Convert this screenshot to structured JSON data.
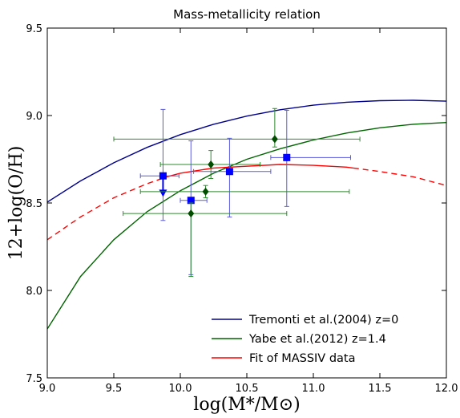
{
  "chart_data": {
    "type": "scatter",
    "title": "Mass-metallicity relation",
    "xlabel": "log(M*/M⊙)",
    "ylabel": "12+log(O/H)",
    "xlim": [
      9.0,
      12.0
    ],
    "ylim": [
      7.5,
      9.5
    ],
    "xticks": [
      "9.0",
      "9.5",
      "10.0",
      "10.5",
      "11.0",
      "11.5",
      "12.0"
    ],
    "yticks": [
      "7.5",
      "8.0",
      "8.5",
      "9.0",
      "9.5"
    ],
    "grid": false,
    "legend_position": "lower-right",
    "series": [
      {
        "name": "Tremonti et al.(2004) z=0",
        "kind": "line",
        "color": "#00008b",
        "x": [
          9.0,
          9.25,
          9.5,
          9.75,
          10.0,
          10.25,
          10.5,
          10.75,
          11.0,
          11.25,
          11.5,
          11.75,
          12.0
        ],
        "y": [
          8.505,
          8.626,
          8.73,
          8.818,
          8.891,
          8.95,
          8.997,
          9.033,
          9.059,
          9.076,
          9.085,
          9.087,
          9.082
        ]
      },
      {
        "name": "Yabe et al.(2012) z=1.4",
        "kind": "line",
        "color": "#006400",
        "x": [
          9.0,
          9.25,
          9.5,
          9.75,
          10.0,
          10.25,
          10.5,
          10.75,
          11.0,
          11.25,
          11.5,
          11.75,
          12.0
        ],
        "y": [
          7.78,
          8.08,
          8.29,
          8.45,
          8.57,
          8.67,
          8.75,
          8.81,
          8.86,
          8.9,
          8.93,
          8.95,
          8.96
        ]
      },
      {
        "name": "Fit of MASSIV data",
        "kind": "line",
        "color": "#ff0000",
        "solid_range": [
          9.9,
          11.3
        ],
        "x": [
          9.0,
          9.25,
          9.5,
          9.75,
          9.9,
          10.0,
          10.25,
          10.5,
          10.75,
          11.0,
          11.25,
          11.3,
          11.5,
          11.75,
          12.0
        ],
        "y": [
          8.29,
          8.42,
          8.53,
          8.61,
          8.65,
          8.67,
          8.7,
          8.71,
          8.72,
          8.715,
          8.705,
          8.7,
          8.68,
          8.65,
          8.6
        ]
      },
      {
        "name": "",
        "kind": "points",
        "marker": "square",
        "color": "#0000ff",
        "errcolor": "#5a5adc",
        "points": [
          {
            "x": 9.87,
            "y": 8.655,
            "xerr": [
              9.7,
              9.99
            ],
            "yerr": [
              8.4,
              9.035
            ],
            "upper_limit": true
          },
          {
            "x": 10.08,
            "y": 8.515,
            "xerr": [
              10.0,
              10.2
            ],
            "yerr": [
              8.09,
              8.855
            ]
          },
          {
            "x": 10.37,
            "y": 8.68,
            "xerr": [
              10.1,
              10.68
            ],
            "yerr": [
              8.42,
              8.87
            ]
          },
          {
            "x": 10.8,
            "y": 8.76,
            "xerr": [
              10.68,
              11.28
            ],
            "yerr": [
              8.48,
              9.03
            ]
          }
        ]
      },
      {
        "name": "",
        "kind": "points",
        "marker": "diamond",
        "color": "#004d00",
        "errcolor": "#2e8b2e",
        "points": [
          {
            "x": 10.08,
            "y": 8.44,
            "xerr": [
              9.57,
              10.8
            ],
            "yerr": [
              8.08,
              8.5
            ]
          },
          {
            "x": 10.19,
            "y": 8.565,
            "xerr": [
              9.7,
              11.27
            ],
            "yerr": [
              8.53,
              8.6
            ]
          },
          {
            "x": 10.23,
            "y": 8.72,
            "xerr": [
              9.85,
              10.6
            ],
            "yerr": [
              8.64,
              8.8
            ]
          },
          {
            "x": 10.71,
            "y": 8.865,
            "xerr": [
              9.5,
              11.35
            ],
            "yerr": [
              8.82,
              9.04
            ]
          }
        ]
      }
    ]
  }
}
